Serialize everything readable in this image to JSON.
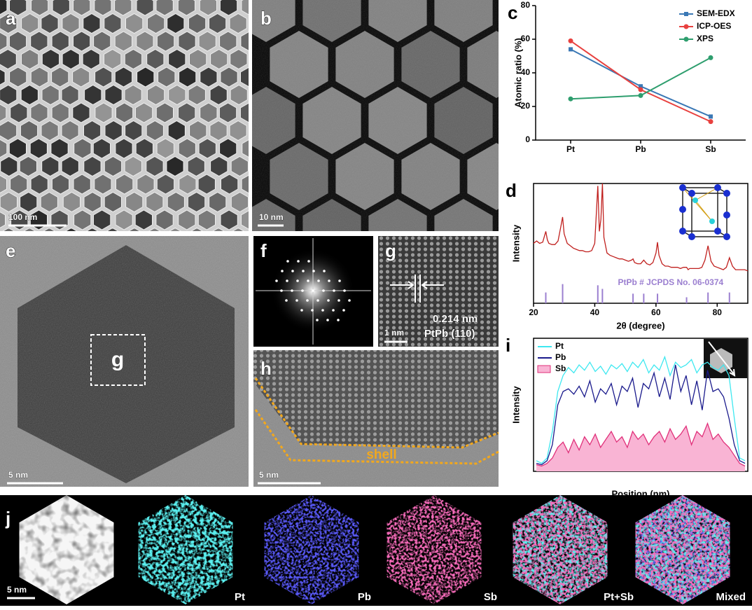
{
  "panels": {
    "a": {
      "label": "a",
      "scale_bar": "100 nm"
    },
    "b": {
      "label": "b",
      "scale_bar": "10 nm"
    },
    "e": {
      "label": "e",
      "scale_bar": "5 nm",
      "region_label": "g"
    },
    "f": {
      "label": "f"
    },
    "g": {
      "label": "g",
      "scale_bar": "1 nm",
      "spacing": "0.214 nm",
      "plane": "PtPb (110)"
    },
    "h": {
      "label": "h",
      "scale_bar": "5 nm",
      "annotation": "shell"
    },
    "j": {
      "label": "j",
      "scale_bar": "5 nm",
      "channels": [
        "Pt",
        "Pb",
        "Sb",
        "Pt+Sb",
        "Mixed"
      ]
    }
  },
  "chart_data": [
    {
      "type": "line",
      "panel_label": "c",
      "ylabel": "Atomic ratio (%)",
      "categories": [
        "Pt",
        "Pb",
        "Sb"
      ],
      "series": [
        {
          "name": "SEM-EDX",
          "color": "#3a78b5",
          "marker": "square",
          "values": [
            54,
            32,
            14
          ]
        },
        {
          "name": "ICP-OES",
          "color": "#e8413f",
          "marker": "circle",
          "values": [
            59,
            30,
            11
          ]
        },
        {
          "name": "XPS",
          "color": "#2e9e6e",
          "marker": "circle",
          "values": [
            24.5,
            26.5,
            49
          ]
        }
      ],
      "ylim": [
        0,
        80
      ],
      "yticks": [
        0,
        20,
        40,
        60,
        80
      ],
      "legend": "upper-right",
      "frame": false
    },
    {
      "type": "line",
      "panel_label": "d",
      "xlabel": "2θ (degree)",
      "ylabel": "Intensity",
      "color": "#c0201e",
      "x": [
        20,
        21,
        22,
        23,
        24,
        24.5,
        25,
        26,
        27,
        28,
        29,
        29.5,
        30,
        31,
        32,
        33,
        34,
        35,
        36,
        37,
        38,
        39,
        40,
        41,
        41.5,
        42,
        42.5,
        43,
        44,
        45,
        46,
        47,
        48,
        49,
        50,
        51,
        52,
        52.5,
        53,
        54,
        55,
        56,
        57,
        58,
        59,
        60,
        60.5,
        61,
        62,
        63,
        64,
        65,
        66,
        67,
        68,
        69,
        70,
        70.5,
        71,
        72,
        73,
        74,
        75,
        76,
        77,
        78,
        79,
        80,
        81,
        82,
        83,
        84,
        85,
        86,
        87,
        88,
        89,
        90
      ],
      "values": [
        50,
        52,
        50,
        51,
        60,
        53,
        50,
        49,
        49,
        52,
        65,
        72,
        58,
        50,
        48,
        46,
        45,
        44,
        44,
        43,
        43,
        44,
        50,
        98,
        60,
        70,
        100,
        55,
        42,
        40,
        39,
        38,
        37,
        37,
        36,
        35,
        36,
        37,
        34,
        33,
        33,
        36,
        33,
        32,
        34,
        42,
        51,
        40,
        33,
        31,
        31,
        30,
        30,
        30,
        29,
        30,
        30,
        28,
        29,
        29,
        29,
        29,
        30,
        36,
        48,
        35,
        31,
        30,
        29,
        28,
        30,
        38,
        31,
        28,
        28,
        28,
        28,
        27
      ],
      "xlim": [
        20,
        90
      ],
      "xticks": [
        20,
        40,
        60,
        80
      ],
      "ylim": [
        0,
        100
      ],
      "frame": true,
      "reference": {
        "name": "PtPb # JCPDS No. 06-0374",
        "color": "#9b7fd0",
        "x": [
          24,
          29.5,
          41,
          42.5,
          52.5,
          56,
          60.5,
          70,
          77,
          84
        ],
        "values": [
          9,
          16,
          15,
          12,
          8,
          8,
          8,
          5,
          9,
          9
        ]
      }
    },
    {
      "type": "line",
      "panel_label": "i",
      "xlabel": "Position (nm)",
      "ylabel": "Intensity",
      "legend": "upper-left",
      "frame": true,
      "ylim": [
        0,
        100
      ],
      "series": [
        {
          "name": "Pt",
          "color": "#3ee8f0",
          "values": [
            8,
            6,
            10,
            30,
            60,
            72,
            78,
            74,
            80,
            76,
            82,
            75,
            79,
            73,
            80,
            77,
            81,
            75,
            82,
            78,
            84,
            74,
            80,
            76,
            86,
            72,
            82,
            78,
            80,
            84,
            74,
            80,
            82,
            78,
            76,
            80,
            72,
            40,
            10,
            8
          ]
        },
        {
          "name": "Pb",
          "color": "#1a1a8c",
          "values": [
            6,
            5,
            8,
            20,
            50,
            60,
            62,
            58,
            64,
            56,
            68,
            52,
            62,
            58,
            66,
            50,
            64,
            60,
            70,
            48,
            66,
            62,
            74,
            56,
            70,
            54,
            80,
            60,
            72,
            50,
            68,
            46,
            76,
            60,
            62,
            56,
            40,
            20,
            8,
            6
          ]
        },
        {
          "name": "Sb",
          "color": "#e0307a",
          "fill": "#f9b4d4",
          "values": [
            5,
            4,
            6,
            10,
            18,
            22,
            14,
            24,
            16,
            26,
            20,
            28,
            18,
            24,
            30,
            22,
            26,
            18,
            30,
            24,
            28,
            20,
            26,
            30,
            22,
            32,
            24,
            28,
            34,
            20,
            30,
            26,
            36,
            24,
            28,
            22,
            18,
            12,
            6,
            4
          ]
        }
      ]
    }
  ]
}
